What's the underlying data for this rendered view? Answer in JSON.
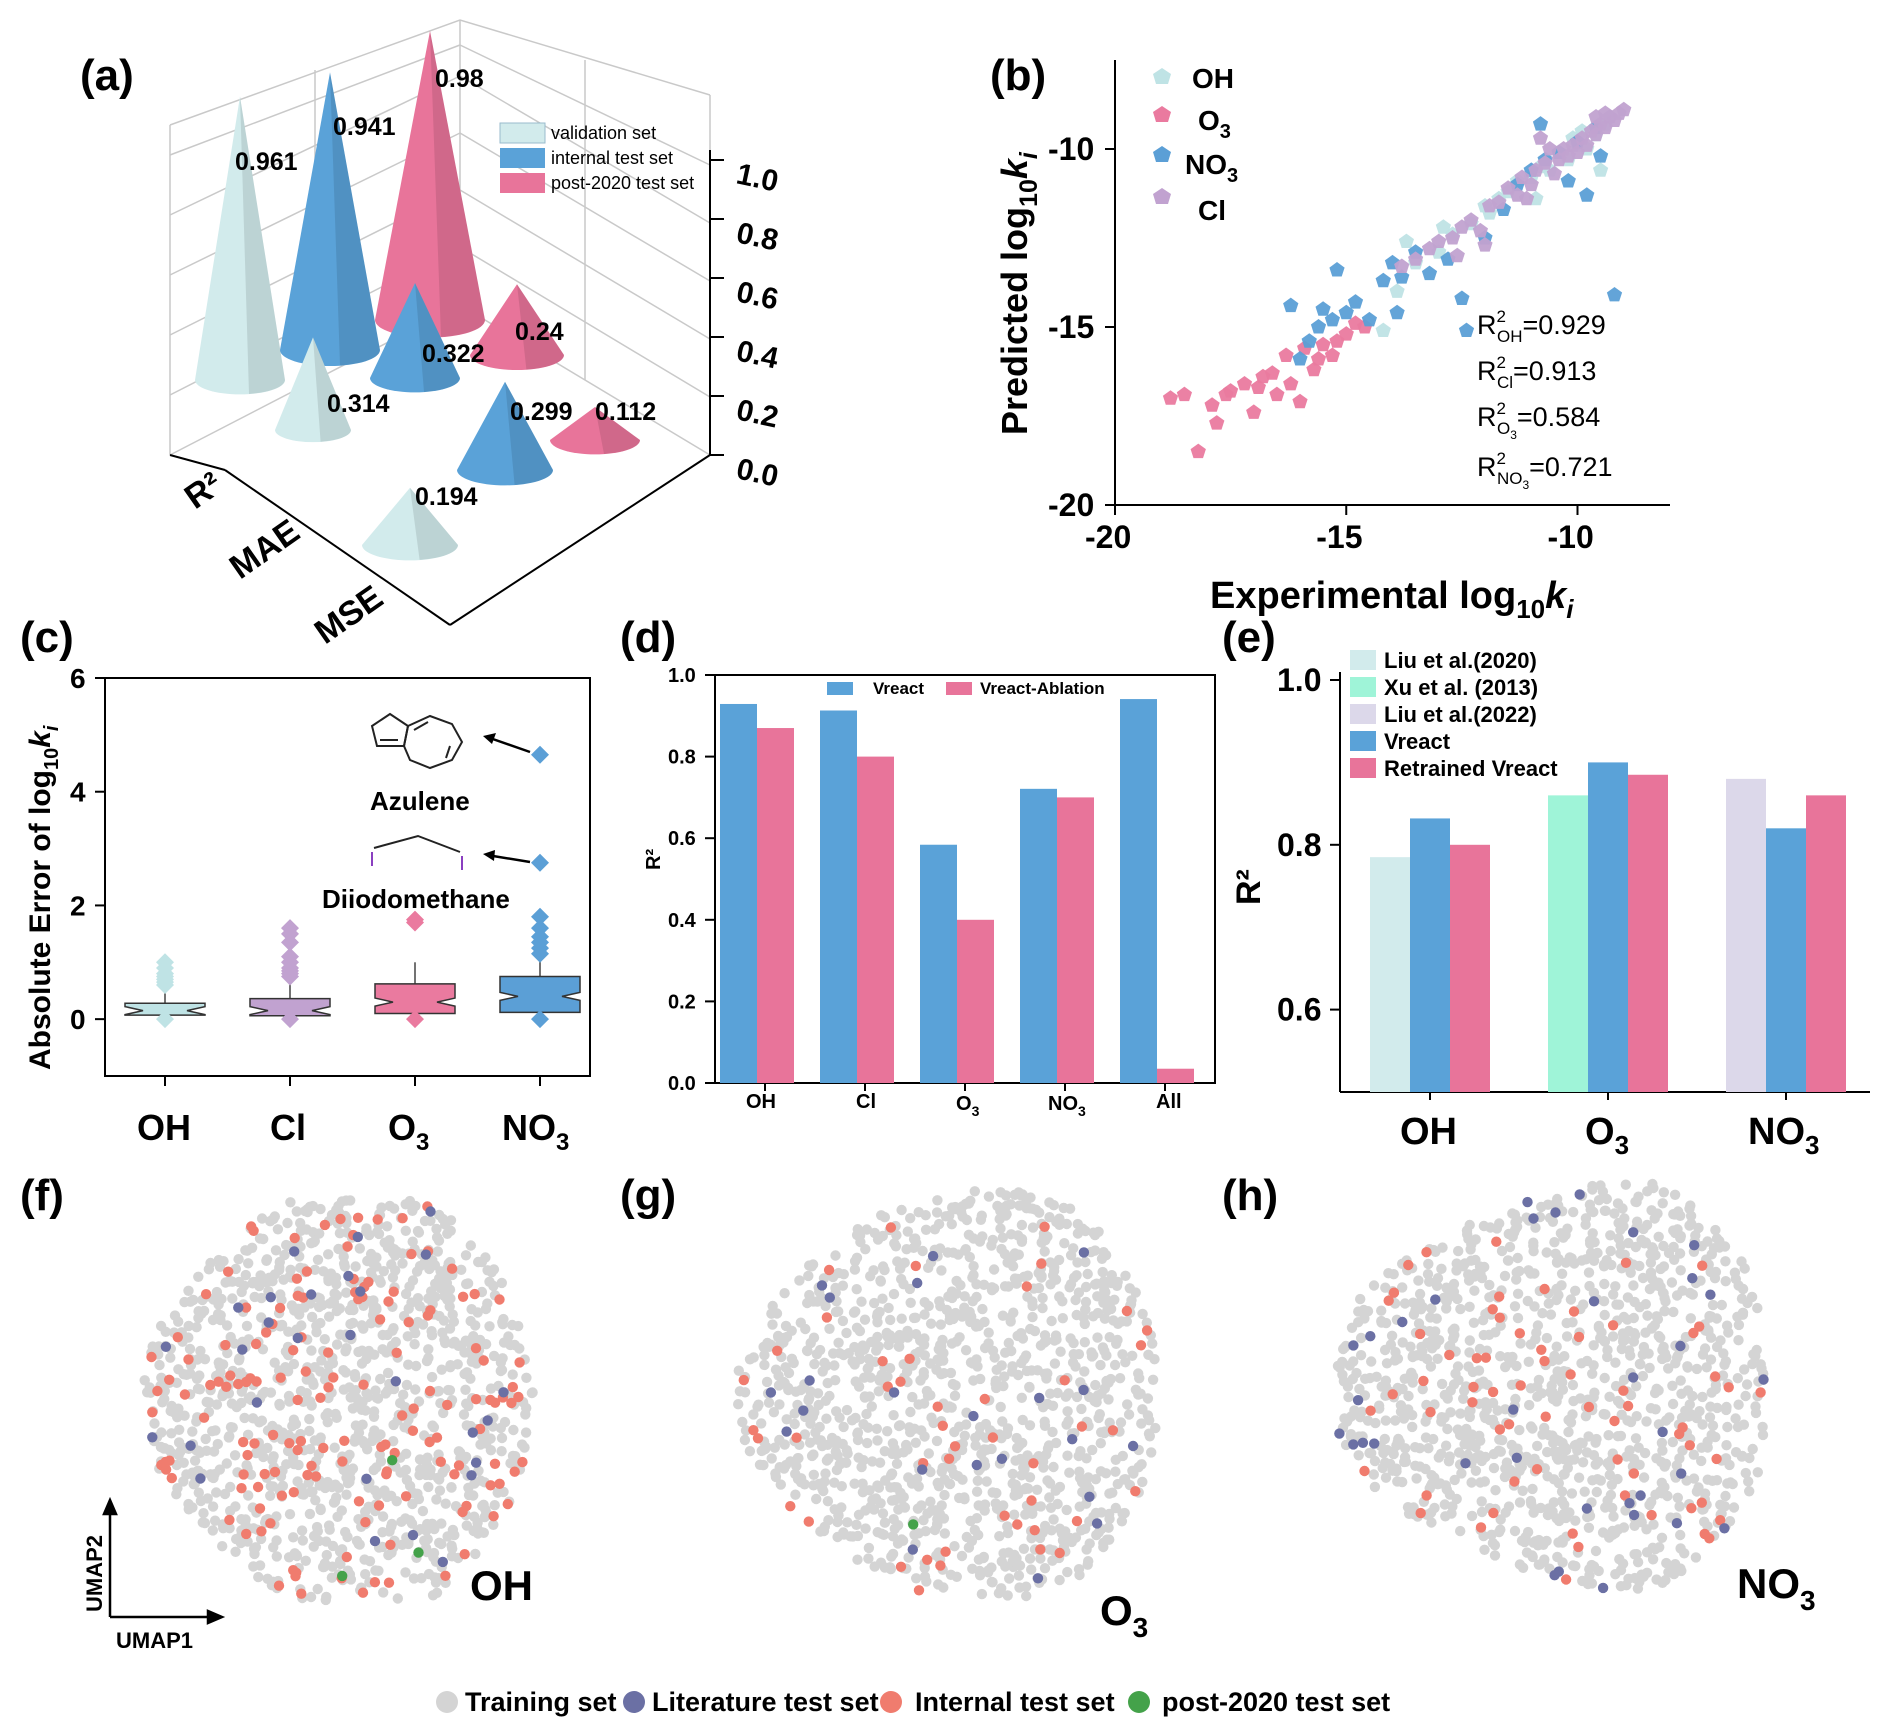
{
  "colors": {
    "validation": "#d2ebec",
    "internal": "#5aa2d8",
    "post2020": "#e8749a",
    "oh_pt": "#bfe3e5",
    "o3_pt": "#ea7a9f",
    "no3_pt": "#5b9fd6",
    "cl_pt": "#c1a2d0",
    "liu2020": "#d2ebec",
    "xu2013": "#9ff4d8",
    "liu2022": "#dcd8ea",
    "vreact": "#5aa2d8",
    "retrained": "#e8749a",
    "ablation": "#e8749a",
    "umap_train": "#d4d4d4",
    "umap_lit": "#6b70a4",
    "umap_internal": "#f07c6e",
    "umap_post": "#44a24a",
    "purple_mol": "#8a3fc0"
  },
  "chart_data": [
    {
      "panel": "(a)",
      "type": "bar",
      "style": "3d-cone",
      "categories": [
        "R²",
        "MAE",
        "MSE"
      ],
      "series": [
        {
          "name": "validation set",
          "values": [
            0.961,
            0.314,
            0.194
          ]
        },
        {
          "name": "internal test set",
          "values": [
            0.941,
            0.322,
            0.299
          ]
        },
        {
          "name": "post-2020 test set",
          "values": [
            0.98,
            0.24,
            0.112
          ]
        }
      ],
      "ylim": [
        0,
        1.0
      ],
      "yticks": [
        "0.0",
        "0.2",
        "0.4",
        "0.6",
        "0.8",
        "1.0"
      ],
      "legend": "top-right"
    },
    {
      "panel": "(b)",
      "type": "scatter",
      "xlabel": "Experimental log",
      "xlabel_sub": "10",
      "xlabel_var": "k",
      "xlabel_var_sub": "i",
      "ylabel": "Predicted log",
      "ylabel_sub": "10",
      "ylabel_var": "k",
      "ylabel_var_sub": "i",
      "xlim": [
        -20,
        -8
      ],
      "ylim": [
        -20,
        -7.5
      ],
      "xticks": [
        "-20",
        "-15",
        "-10"
      ],
      "yticks": [
        "-20",
        "-15",
        "-10"
      ],
      "legend": [
        "OH",
        "O3",
        "NO3",
        "Cl"
      ],
      "annotations": [
        {
          "base": "R",
          "sub": "OH",
          "value": "=0.929"
        },
        {
          "base": "R",
          "sub": "Cl",
          "value": "=0.913"
        },
        {
          "base": "R",
          "sub": "O3",
          "value": "=0.584"
        },
        {
          "base": "R",
          "sub": "NO3",
          "value": "=0.721"
        }
      ],
      "series": [
        {
          "name": "OH",
          "points": [
            [
              -14.2,
              -15.1
            ],
            [
              -13.9,
              -14.0
            ],
            [
              -13.5,
              -13.2
            ],
            [
              -13.0,
              -12.9
            ],
            [
              -12.7,
              -12.4
            ],
            [
              -12.3,
              -12.1
            ],
            [
              -12.0,
              -11.6
            ],
            [
              -11.7,
              -11.4
            ],
            [
              -11.5,
              -11.2
            ],
            [
              -11.3,
              -10.9
            ],
            [
              -11.0,
              -10.8
            ],
            [
              -10.8,
              -10.5
            ],
            [
              -10.6,
              -10.6
            ],
            [
              -10.4,
              -10.1
            ],
            [
              -10.2,
              -10.3
            ],
            [
              -10.0,
              -9.9
            ],
            [
              -9.8,
              -10.0
            ],
            [
              -9.6,
              -9.6
            ],
            [
              -9.5,
              -10.6
            ],
            [
              -9.4,
              -9.3
            ],
            [
              -13.7,
              -12.6
            ],
            [
              -12.9,
              -12.2
            ],
            [
              -11.9,
              -11.8
            ],
            [
              -10.9,
              -11.4
            ],
            [
              -10.1,
              -9.7
            ],
            [
              -9.9,
              -9.5
            ]
          ]
        },
        {
          "name": "O3",
          "points": [
            [
              -18.8,
              -17.0
            ],
            [
              -18.5,
              -16.9
            ],
            [
              -18.2,
              -18.5
            ],
            [
              -17.9,
              -17.2
            ],
            [
              -17.8,
              -17.7
            ],
            [
              -17.5,
              -16.8
            ],
            [
              -17.2,
              -16.6
            ],
            [
              -17.0,
              -17.4
            ],
            [
              -16.8,
              -16.4
            ],
            [
              -16.6,
              -16.3
            ],
            [
              -16.5,
              -16.9
            ],
            [
              -16.3,
              -15.8
            ],
            [
              -16.2,
              -16.6
            ],
            [
              -16.0,
              -17.1
            ],
            [
              -15.9,
              -15.6
            ],
            [
              -15.7,
              -16.2
            ],
            [
              -15.6,
              -15.9
            ],
            [
              -15.5,
              -15.5
            ],
            [
              -15.3,
              -15.8
            ],
            [
              -15.2,
              -15.4
            ],
            [
              -15.0,
              -15.2
            ],
            [
              -14.8,
              -14.9
            ],
            [
              -14.6,
              -15.0
            ],
            [
              -17.6,
              -16.9
            ],
            [
              -16.9,
              -16.7
            ]
          ]
        },
        {
          "name": "NO3",
          "points": [
            [
              -16.2,
              -14.4
            ],
            [
              -16.0,
              -15.9
            ],
            [
              -15.8,
              -15.4
            ],
            [
              -15.6,
              -15.0
            ],
            [
              -15.5,
              -14.5
            ],
            [
              -15.3,
              -14.8
            ],
            [
              -15.2,
              -13.4
            ],
            [
              -15.0,
              -14.6
            ],
            [
              -14.8,
              -14.3
            ],
            [
              -14.5,
              -14.8
            ],
            [
              -14.2,
              -13.7
            ],
            [
              -14.0,
              -13.2
            ],
            [
              -13.8,
              -13.6
            ],
            [
              -13.5,
              -12.9
            ],
            [
              -13.2,
              -13.5
            ],
            [
              -12.8,
              -13.1
            ],
            [
              -12.5,
              -14.2
            ],
            [
              -12.4,
              -15.1
            ],
            [
              -12.0,
              -12.5
            ],
            [
              -11.6,
              -11.7
            ],
            [
              -11.3,
              -11.0
            ],
            [
              -11.0,
              -10.6
            ],
            [
              -10.7,
              -10.3
            ],
            [
              -10.4,
              -10.1
            ],
            [
              -10.2,
              -10.9
            ],
            [
              -10.0,
              -9.8
            ],
            [
              -9.8,
              -11.3
            ],
            [
              -9.6,
              -9.4
            ],
            [
              -9.5,
              -10.2
            ],
            [
              -9.2,
              -14.1
            ],
            [
              -10.8,
              -9.3
            ],
            [
              -13.9,
              -14.6
            ]
          ]
        },
        {
          "name": "Cl",
          "points": [
            [
              -13.8,
              -13.3
            ],
            [
              -13.5,
              -13.1
            ],
            [
              -13.2,
              -12.8
            ],
            [
              -13.0,
              -12.6
            ],
            [
              -12.7,
              -12.5
            ],
            [
              -12.5,
              -12.2
            ],
            [
              -12.3,
              -12.0
            ],
            [
              -12.1,
              -12.3
            ],
            [
              -11.9,
              -11.6
            ],
            [
              -11.7,
              -11.5
            ],
            [
              -11.5,
              -11.1
            ],
            [
              -11.3,
              -11.3
            ],
            [
              -11.2,
              -10.8
            ],
            [
              -11.0,
              -11.0
            ],
            [
              -10.9,
              -10.6
            ],
            [
              -10.7,
              -10.4
            ],
            [
              -10.5,
              -10.7
            ],
            [
              -10.4,
              -10.3
            ],
            [
              -10.3,
              -10.0
            ],
            [
              -10.2,
              -10.2
            ],
            [
              -10.1,
              -9.9
            ],
            [
              -10.0,
              -10.1
            ],
            [
              -9.9,
              -9.7
            ],
            [
              -9.8,
              -9.9
            ],
            [
              -9.7,
              -9.5
            ],
            [
              -9.6,
              -9.6
            ],
            [
              -9.5,
              -9.3
            ],
            [
              -9.4,
              -9.4
            ],
            [
              -9.3,
              -9.1
            ],
            [
              -9.2,
              -9.2
            ],
            [
              -9.1,
              -9.0
            ],
            [
              -9.0,
              -8.9
            ],
            [
              -9.6,
              -9.1
            ],
            [
              -10.6,
              -10.0
            ],
            [
              -11.1,
              -11.4
            ],
            [
              -12.0,
              -12.7
            ],
            [
              -12.6,
              -13.0
            ],
            [
              -10.8,
              -9.7
            ],
            [
              -9.4,
              -9.0
            ]
          ]
        }
      ]
    },
    {
      "panel": "(c)",
      "type": "box",
      "categories": [
        "OH",
        "Cl",
        "O3",
        "NO3"
      ],
      "ylabel": "Absolute Error of log",
      "ylabel_sub": "10",
      "ylabel_var": "k",
      "ylabel_var_sub": "i",
      "ylim": [
        -1,
        6
      ],
      "yticks": [
        "0",
        "2",
        "4",
        "6"
      ],
      "boxes": [
        {
          "q1": 0.07,
          "median": 0.15,
          "q3": 0.28,
          "whisker_low": 0.0,
          "whisker_high": 0.55,
          "outliers": [
            0.6,
            0.65,
            0.7,
            0.75,
            0.8,
            0.9,
            1.0
          ]
        },
        {
          "q1": 0.06,
          "median": 0.15,
          "q3": 0.36,
          "whisker_low": 0.0,
          "whisker_high": 0.7,
          "outliers": [
            0.75,
            0.8,
            0.85,
            0.9,
            1.0,
            1.1,
            1.35,
            1.5,
            1.6
          ]
        },
        {
          "q1": 0.1,
          "median": 0.3,
          "q3": 0.62,
          "whisker_low": 0.0,
          "whisker_high": 1.0,
          "outliers": [
            1.7,
            1.75
          ]
        },
        {
          "q1": 0.12,
          "median": 0.4,
          "q3": 0.75,
          "whisker_low": 0.0,
          "whisker_high": 1.1,
          "outliers": [
            1.15,
            1.25,
            1.35,
            1.45,
            1.6,
            1.8,
            2.75,
            4.65
          ]
        }
      ],
      "annotations": [
        "Azulene",
        "Diiodomethane"
      ]
    },
    {
      "panel": "(d)",
      "type": "bar",
      "categories": [
        "OH",
        "Cl",
        "O3",
        "NO3",
        "All"
      ],
      "series": [
        {
          "name": "Vreact",
          "values": [
            0.929,
            0.913,
            0.584,
            0.721,
            0.941
          ]
        },
        {
          "name": "Vreact-Ablation",
          "values": [
            0.87,
            0.8,
            0.4,
            0.7,
            0.035
          ]
        }
      ],
      "ylabel": "R²",
      "ylim": [
        0,
        1.0
      ],
      "yticks": [
        "0.0",
        "0.2",
        "0.4",
        "0.6",
        "0.8",
        "1.0"
      ],
      "legend": "top"
    },
    {
      "panel": "(e)",
      "type": "bar",
      "categories": [
        "OH",
        "O3",
        "NO3"
      ],
      "series": [
        {
          "name": "Liu et al.(2020)",
          "values": [
            0.785,
            null,
            null
          ]
        },
        {
          "name": "Xu et al. (2013)",
          "values": [
            null,
            0.86,
            null
          ]
        },
        {
          "name": "Liu et al.(2022)",
          "values": [
            null,
            null,
            0.88
          ]
        },
        {
          "name": "Vreact",
          "values": [
            0.832,
            0.9,
            0.82
          ]
        },
        {
          "name": "Retrained Vreact",
          "values": [
            0.8,
            0.885,
            0.86
          ]
        }
      ],
      "ylabel": "R²",
      "ylim": [
        0.5,
        1.0
      ],
      "yticks": [
        "0.6",
        "0.8",
        "1.0"
      ],
      "legend": "top-left"
    },
    {
      "panel": "(f)-(h)",
      "type": "scatter",
      "style": "umap",
      "panels": [
        {
          "label": "(f)",
          "title": "OH"
        },
        {
          "label": "(g)",
          "title": "O3"
        },
        {
          "label": "(h)",
          "title": "NO3"
        }
      ],
      "xlabel": "UMAP1",
      "ylabel": "UMAP2",
      "legend": [
        "Training set",
        "Literature test set",
        "Internal test set",
        "post-2020 test set"
      ]
    }
  ],
  "labels": {
    "a": "(a)",
    "b": "(b)",
    "c": "(c)",
    "d": "(d)",
    "e": "(e)",
    "f": "(f)",
    "g": "(g)",
    "h": "(h)",
    "a_vals": [
      "0.961",
      "0.941",
      "0.98",
      "0.314",
      "0.322",
      "0.24",
      "0.194",
      "0.299",
      "0.112"
    ],
    "a_cats": [
      "R²",
      "MAE",
      "MSE"
    ],
    "a_legend": [
      "validation set",
      "internal test set",
      "post-2020 test set"
    ]
  }
}
